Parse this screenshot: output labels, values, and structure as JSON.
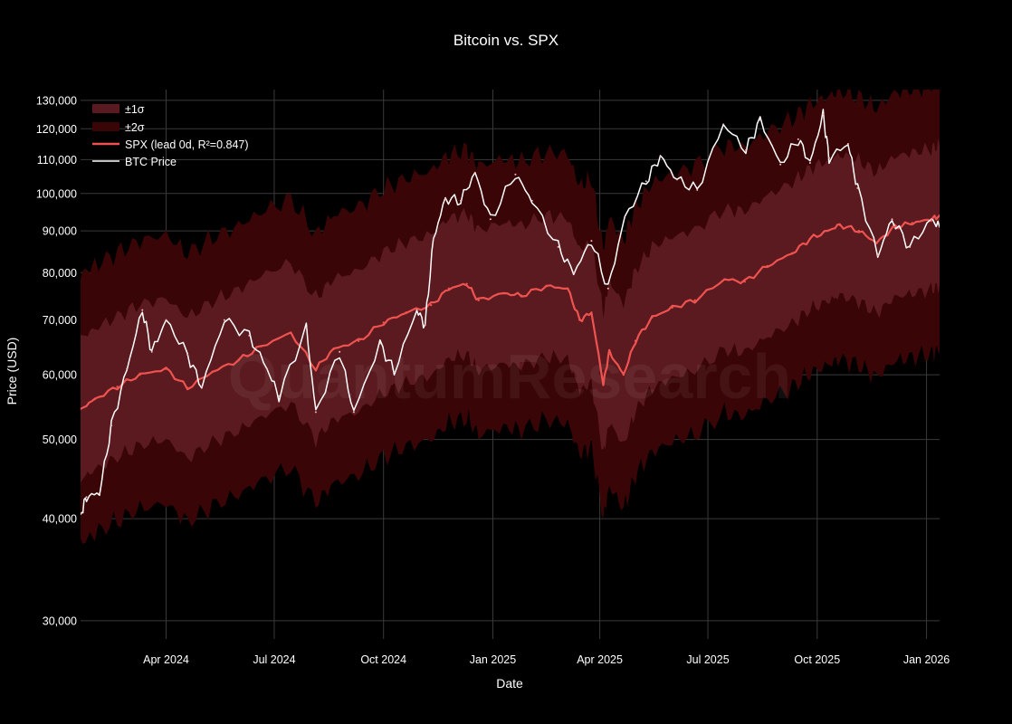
{
  "chart_data": {
    "type": "line",
    "title": "Bitcoin vs. SPX",
    "xlabel": "Date",
    "ylabel": "Price (USD)",
    "y_scale": "log",
    "ylim": [
      28500,
      134000
    ],
    "xlim": [
      "2024-01-20",
      "2026-01-12"
    ],
    "grid": true,
    "watermark": "QuantumResearch",
    "legend_position": "top-left",
    "x_ticks": [
      {
        "date": "2024-04-01",
        "label": "Apr 2024"
      },
      {
        "date": "2024-07-01",
        "label": "Jul 2024"
      },
      {
        "date": "2024-10-01",
        "label": "Oct 2024"
      },
      {
        "date": "2025-01-01",
        "label": "Jan 2025"
      },
      {
        "date": "2025-04-01",
        "label": "Apr 2025"
      },
      {
        "date": "2025-07-01",
        "label": "Jul 2025"
      },
      {
        "date": "2025-10-01",
        "label": "Oct 2025"
      },
      {
        "date": "2026-01-01",
        "label": "Jan 2026"
      }
    ],
    "y_ticks": [
      {
        "value": 30000,
        "label": "30,000"
      },
      {
        "value": 40000,
        "label": "40,000"
      },
      {
        "value": 50000,
        "label": "50,000"
      },
      {
        "value": 60000,
        "label": "60,000"
      },
      {
        "value": 70000,
        "label": "70,000"
      },
      {
        "value": 80000,
        "label": "80,000"
      },
      {
        "value": 90000,
        "label": "90,000"
      },
      {
        "value": 100000,
        "label": "100,000"
      },
      {
        "value": 110000,
        "label": "110,000"
      },
      {
        "value": 120000,
        "label": "120,000"
      },
      {
        "value": 130000,
        "label": "130,000"
      }
    ],
    "legend": [
      {
        "key": "sigma1",
        "label": "±1σ",
        "color": "#5a1a1f",
        "kind": "band"
      },
      {
        "key": "sigma2",
        "label": "±2σ",
        "color": "#3a0506",
        "kind": "band"
      },
      {
        "key": "spx",
        "label": "SPX (lead 0d, R²=0.847)",
        "color": "#ef5350",
        "kind": "line"
      },
      {
        "key": "btc",
        "label": "BTC Price",
        "color": "#ffffff",
        "kind": "line"
      }
    ],
    "band_sigma1_ratio": 1.22,
    "band_sigma2_ratio": 1.46,
    "colors": {
      "background": "#000000",
      "sigma1": "#5a1a1f",
      "sigma2": "#3a0506",
      "spx": "#ef5350",
      "btc": "#ffffff",
      "btc_inside_band": "#f4b9b9"
    },
    "series": [
      {
        "name": "SPX (lead 0d, R²=0.847)",
        "points": [
          [
            "2024-01-20",
            54500
          ],
          [
            "2024-02-01",
            56000
          ],
          [
            "2024-02-20",
            58000
          ],
          [
            "2024-03-10",
            60000
          ],
          [
            "2024-04-01",
            61000
          ],
          [
            "2024-04-19",
            57800
          ],
          [
            "2024-05-10",
            60500
          ],
          [
            "2024-06-01",
            62500
          ],
          [
            "2024-06-20",
            65000
          ],
          [
            "2024-07-15",
            67500
          ],
          [
            "2024-08-05",
            61000
          ],
          [
            "2024-08-20",
            64500
          ],
          [
            "2024-09-10",
            66000
          ],
          [
            "2024-10-01",
            69500
          ],
          [
            "2024-10-20",
            71500
          ],
          [
            "2024-11-10",
            73000
          ],
          [
            "2024-11-25",
            76500
          ],
          [
            "2024-12-10",
            77500
          ],
          [
            "2024-12-20",
            74000
          ],
          [
            "2025-01-10",
            75500
          ],
          [
            "2025-01-25",
            75000
          ],
          [
            "2025-02-15",
            77000
          ],
          [
            "2025-03-05",
            76500
          ],
          [
            "2025-03-15",
            70000
          ],
          [
            "2025-03-25",
            71500
          ],
          [
            "2025-04-04",
            58500
          ],
          [
            "2025-04-09",
            64000
          ],
          [
            "2025-04-21",
            60000
          ],
          [
            "2025-05-01",
            66000
          ],
          [
            "2025-05-15",
            70500
          ],
          [
            "2025-06-01",
            72500
          ],
          [
            "2025-06-20",
            74000
          ],
          [
            "2025-07-15",
            78500
          ],
          [
            "2025-08-01",
            78000
          ],
          [
            "2025-08-20",
            81500
          ],
          [
            "2025-09-10",
            84500
          ],
          [
            "2025-09-25",
            88000
          ],
          [
            "2025-10-10",
            90000
          ],
          [
            "2025-10-20",
            91500
          ],
          [
            "2025-11-05",
            90000
          ],
          [
            "2025-11-20",
            87000
          ],
          [
            "2025-12-05",
            91000
          ],
          [
            "2025-12-20",
            92000
          ],
          [
            "2026-01-05",
            93000
          ],
          [
            "2026-01-12",
            94000
          ]
        ]
      },
      {
        "name": "BTC Price",
        "points": [
          [
            "2024-01-20",
            40500
          ],
          [
            "2024-01-25",
            42500
          ],
          [
            "2024-02-05",
            43000
          ],
          [
            "2024-02-15",
            52000
          ],
          [
            "2024-02-28",
            61000
          ],
          [
            "2024-03-12",
            72000
          ],
          [
            "2024-03-20",
            64000
          ],
          [
            "2024-04-01",
            70000
          ],
          [
            "2024-04-19",
            63500
          ],
          [
            "2024-05-01",
            58000
          ],
          [
            "2024-05-20",
            70000
          ],
          [
            "2024-06-10",
            67000
          ],
          [
            "2024-06-25",
            61000
          ],
          [
            "2024-07-05",
            56500
          ],
          [
            "2024-07-28",
            68500
          ],
          [
            "2024-08-05",
            54000
          ],
          [
            "2024-08-25",
            64000
          ],
          [
            "2024-09-06",
            54000
          ],
          [
            "2024-09-28",
            65500
          ],
          [
            "2024-10-10",
            60500
          ],
          [
            "2024-10-29",
            72000
          ],
          [
            "2024-11-05",
            69000
          ],
          [
            "2024-11-12",
            88000
          ],
          [
            "2024-11-22",
            98500
          ],
          [
            "2024-12-05",
            98000
          ],
          [
            "2024-12-17",
            106000
          ],
          [
            "2024-12-30",
            93000
          ],
          [
            "2025-01-20",
            105500
          ],
          [
            "2025-02-03",
            98000
          ],
          [
            "2025-02-25",
            86000
          ],
          [
            "2025-03-10",
            80000
          ],
          [
            "2025-03-25",
            87500
          ],
          [
            "2025-04-08",
            76500
          ],
          [
            "2025-04-22",
            93500
          ],
          [
            "2025-05-10",
            103500
          ],
          [
            "2025-05-22",
            111000
          ],
          [
            "2025-06-05",
            104000
          ],
          [
            "2025-06-22",
            101000
          ],
          [
            "2025-07-14",
            121500
          ],
          [
            "2025-08-02",
            113000
          ],
          [
            "2025-08-14",
            123000
          ],
          [
            "2025-08-31",
            108500
          ],
          [
            "2025-09-15",
            116500
          ],
          [
            "2025-09-25",
            109000
          ],
          [
            "2025-10-06",
            125000
          ],
          [
            "2025-10-11",
            110500
          ],
          [
            "2025-10-27",
            115000
          ],
          [
            "2025-11-04",
            101500
          ],
          [
            "2025-11-21",
            84000
          ],
          [
            "2025-12-03",
            93000
          ],
          [
            "2025-12-18",
            86000
          ],
          [
            "2026-01-05",
            93000
          ],
          [
            "2026-01-12",
            91000
          ]
        ]
      }
    ]
  }
}
